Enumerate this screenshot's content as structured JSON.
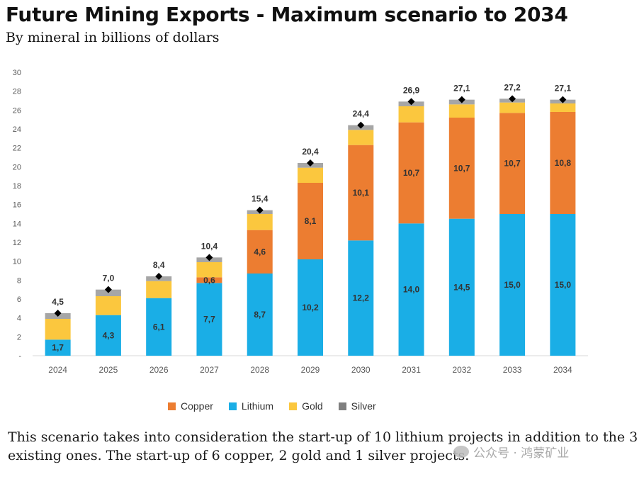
{
  "header": {
    "title": "Future Mining Exports - Maximum scenario to 2034",
    "subtitle": "By mineral in billions of dollars"
  },
  "chart_data": {
    "type": "bar",
    "stacked": true,
    "title": "Future Mining Exports - Maximum scenario to 2034",
    "subtitle": "By mineral in billions of dollars",
    "xlabel": "",
    "ylabel": "",
    "ylim": [
      0,
      30
    ],
    "yticks": [
      0,
      2,
      4,
      6,
      8,
      10,
      12,
      14,
      16,
      18,
      20,
      22,
      24,
      26,
      28,
      30
    ],
    "categories": [
      "2024",
      "2025",
      "2026",
      "2027",
      "2028",
      "2029",
      "2030",
      "2031",
      "2032",
      "2033",
      "2034"
    ],
    "series": [
      {
        "name": "Lithium",
        "color": "#1aaee6",
        "values": [
          1.7,
          4.3,
          6.1,
          7.7,
          8.7,
          10.2,
          12.2,
          14.0,
          14.5,
          15.0,
          15.0
        ],
        "labels": [
          "1,7",
          "4,3",
          "6,1",
          "7,7",
          "8,7",
          "10,2",
          "12,2",
          "14,0",
          "14,5",
          "15,0",
          "15,0"
        ]
      },
      {
        "name": "Copper",
        "color": "#ec7d31",
        "values": [
          0,
          0,
          0,
          0.6,
          4.6,
          8.1,
          10.1,
          10.7,
          10.7,
          10.7,
          10.8
        ],
        "labels": [
          "",
          "",
          "",
          "0,6",
          "4,6",
          "8,1",
          "10,1",
          "10,7",
          "10,7",
          "10,7",
          "10,8"
        ]
      },
      {
        "name": "Gold",
        "color": "#fbc73e",
        "values": [
          2.2,
          2.0,
          1.8,
          1.6,
          1.7,
          1.6,
          1.6,
          1.7,
          1.4,
          1.1,
          0.9
        ],
        "labels": []
      },
      {
        "name": "Silver",
        "color": "#a6a6a6",
        "values": [
          0.6,
          0.7,
          0.5,
          0.5,
          0.4,
          0.5,
          0.5,
          0.5,
          0.5,
          0.4,
          0.4
        ],
        "labels": []
      }
    ],
    "totals": [
      4.5,
      7.0,
      8.4,
      10.4,
      15.4,
      20.4,
      24.4,
      26.9,
      27.1,
      27.2,
      27.1
    ],
    "total_labels": [
      "4,5",
      "7,0",
      "8,4",
      "10,4",
      "15,4",
      "20,4",
      "24,4",
      "26,9",
      "27,1",
      "27,2",
      "27,1"
    ],
    "legend": [
      "Copper",
      "Lithium",
      "Gold",
      "Silver"
    ],
    "legend_position": "bottom",
    "grid": false
  },
  "legend": {
    "items": [
      {
        "label": "Copper",
        "color": "#ec7d31"
      },
      {
        "label": "Lithium",
        "color": "#1aaee6"
      },
      {
        "label": "Gold",
        "color": "#fbc73e"
      },
      {
        "label": "Silver",
        "color": "#7f7f7f"
      }
    ]
  },
  "footnote": "This scenario takes into consideration the start-up of 10 lithium projects in addition to the 3 existing ones. The start-up of 6 copper, 2 gold and 1 silver projects.",
  "watermark": "公众号 · 鸿蒙矿业"
}
